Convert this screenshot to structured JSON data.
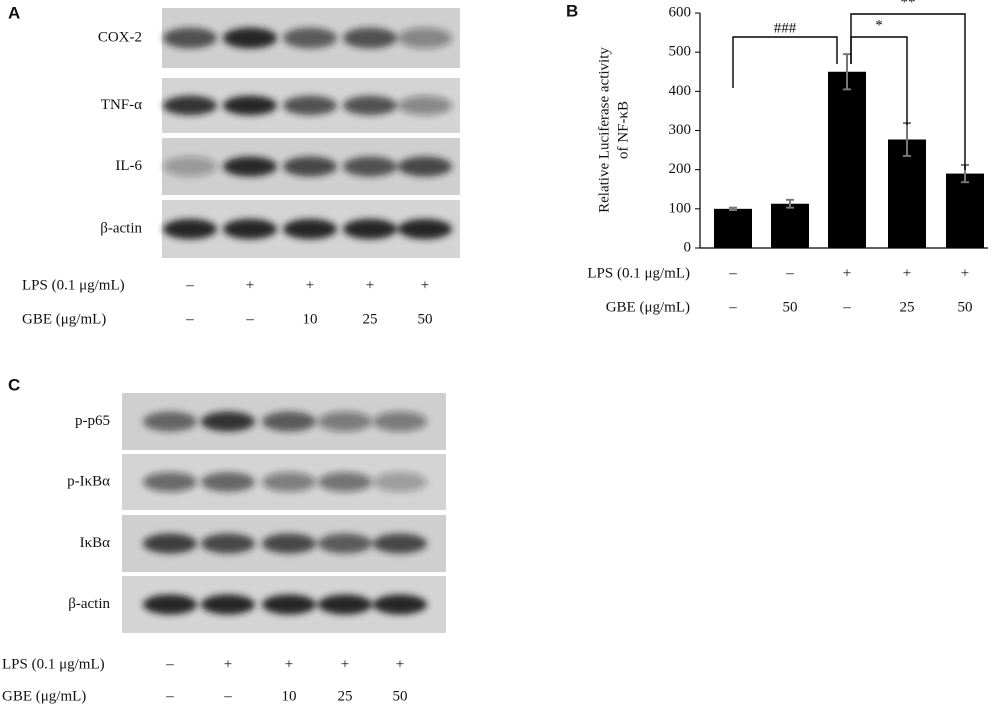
{
  "panel_a": {
    "label": "A",
    "rows": [
      "COX-2",
      "TNF-α",
      "IL-6",
      "β-actin"
    ],
    "conditions": [
      {
        "name": "LPS (0.1 μg/mL)",
        "values": [
          "–",
          "+",
          "+",
          "+",
          "+"
        ]
      },
      {
        "name": "GBE (μg/mL)",
        "values": [
          "–",
          "–",
          "10",
          "25",
          "50"
        ]
      }
    ]
  },
  "chart_data": {
    "type": "bar",
    "label": "B",
    "ylabel": [
      "Relative Luciferase activity",
      "of NF-κB"
    ],
    "categories": [
      null,
      null,
      null,
      null,
      null
    ],
    "conditions": [
      {
        "name": "LPS (0.1 μg/mL)",
        "values": [
          "–",
          "–",
          "+",
          "+",
          "+"
        ]
      },
      {
        "name": "GBE (μg/mL)",
        "values": [
          "–",
          "50",
          "–",
          "25",
          "50"
        ]
      }
    ],
    "values": [
      100,
      113,
      450,
      277,
      190
    ],
    "errors": [
      3,
      10,
      45,
      42,
      22
    ],
    "color": "#000000",
    "ylim": [
      0,
      600
    ],
    "yticks": [
      0,
      100,
      200,
      300,
      400,
      500,
      600
    ],
    "annotations": [
      "###",
      "*",
      "**"
    ]
  },
  "panel_c": {
    "label": "C",
    "rows": [
      "p-p65",
      "p-IκBα",
      "IκBα",
      "β-actin"
    ],
    "conditions": [
      {
        "name": "LPS (0.1 μg/mL)",
        "values": [
          "–",
          "+",
          "+",
          "+",
          "+"
        ]
      },
      {
        "name": "GBE (μg/mL)",
        "values": [
          "–",
          "–",
          "10",
          "25",
          "50"
        ]
      }
    ]
  }
}
